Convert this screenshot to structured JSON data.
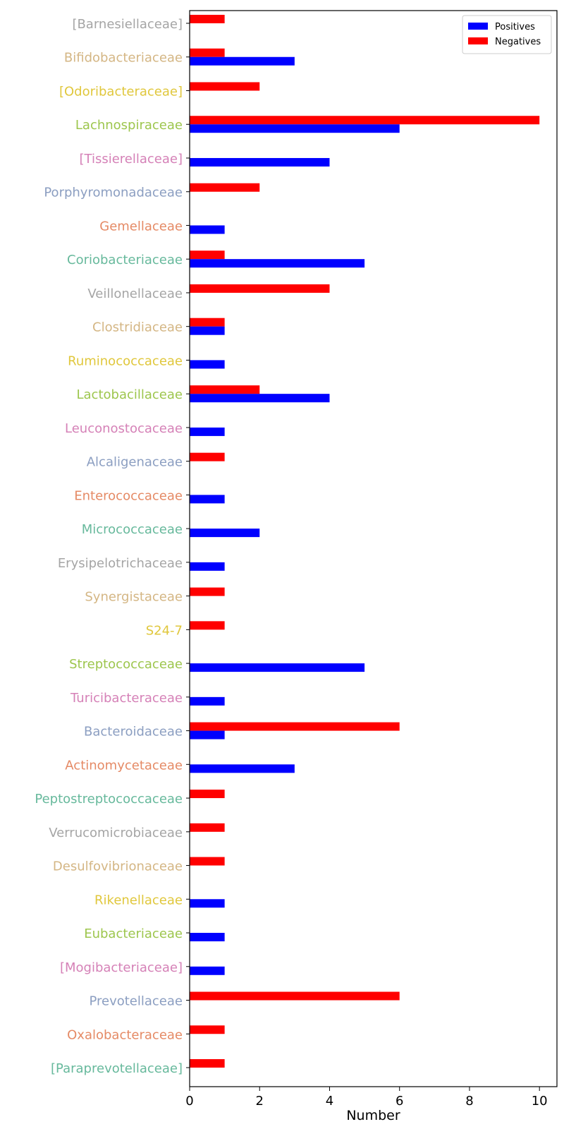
{
  "chart_data": {
    "type": "bar",
    "orientation": "horizontal",
    "xlabel": "Number",
    "xlim": [
      0,
      10.5
    ],
    "xticks": [
      0,
      2,
      4,
      6,
      8,
      10
    ],
    "grid": false,
    "legend_position": "top-right",
    "categories": [
      "[Barnesiellaceae]",
      "Bifidobacteriaceae",
      "[Odoribacteraceae]",
      "Lachnospiraceae",
      "[Tissierellaceae]",
      "Porphyromonadaceae",
      "Gemellaceae",
      "Coriobacteriaceae",
      "Veillonellaceae",
      "Clostridiaceae",
      "Ruminococcaceae",
      "Lactobacillaceae",
      "Leuconostocaceae",
      "Alcaligenaceae",
      "Enterococcaceae",
      "Micrococcaceae",
      "Erysipelotrichaceae",
      "Synergistaceae",
      "S24-7",
      "Streptococcaceae",
      "Turicibacteraceae",
      "Bacteroidaceae",
      "Actinomycetaceae",
      "Peptostreptococcaceae",
      "Verrucomicrobiaceae",
      "Desulfovibrionaceae",
      "Rikenellaceae",
      "Eubacteriaceae",
      "[Mogibacteriaceae]",
      "Prevotellaceae",
      "Oxalobacteraceae",
      "[Paraprevotellaceae]"
    ],
    "label_colors": [
      "#a5a5a5",
      "#d4b684",
      "#e0c73c",
      "#9dc64d",
      "#d581b7",
      "#8b9ec1",
      "#e58a65",
      "#67b99c"
    ],
    "series": [
      {
        "name": "Positives",
        "color": "#0000ff",
        "values": [
          0,
          3,
          0,
          6,
          4,
          0,
          1,
          5,
          0,
          1,
          1,
          4,
          1,
          0,
          1,
          2,
          1,
          0,
          0,
          5,
          1,
          1,
          3,
          0,
          0,
          0,
          1,
          1,
          1,
          0,
          0,
          0
        ]
      },
      {
        "name": "Negatives",
        "color": "#ff0000",
        "values": [
          1,
          1,
          2,
          10,
          0,
          2,
          0,
          1,
          4,
          1,
          0,
          2,
          0,
          1,
          0,
          0,
          0,
          1,
          1,
          0,
          0,
          6,
          0,
          1,
          1,
          1,
          0,
          0,
          0,
          6,
          1,
          1
        ]
      }
    ]
  }
}
